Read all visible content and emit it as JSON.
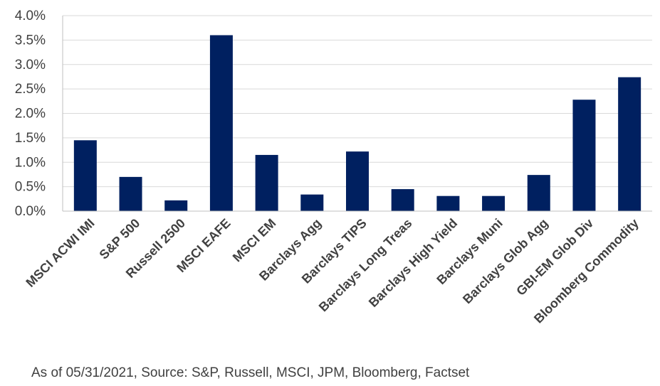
{
  "chart_data": {
    "type": "bar",
    "categories": [
      "MSCI ACWI IMI",
      "S&P 500",
      "Russell 2500",
      "MSCI EAFE",
      "MSCI EM",
      "Barclays Agg",
      "Barclays TIPS",
      "Barclays Long Treas",
      "Barclays High Yield",
      "Barclays Muni",
      "Barclays Glob Agg",
      "GBI-EM Glob Div",
      "Bloomberg Commodity"
    ],
    "values": [
      1.45,
      0.7,
      0.22,
      3.6,
      1.15,
      0.34,
      1.22,
      0.45,
      0.31,
      0.31,
      0.74,
      2.28,
      2.74
    ],
    "yticks": [
      "0.0%",
      "0.5%",
      "1.0%",
      "1.5%",
      "2.0%",
      "2.5%",
      "3.0%",
      "3.5%",
      "4.0%"
    ],
    "ylim": [
      0,
      4.0
    ],
    "grid": true,
    "legend": "none",
    "bar_color": "#002060",
    "grid_color": "#d9d9d9"
  },
  "footnote": "As of 05/31/2021, Source: S&P, Russell, MSCI, JPM, Bloomberg, Factset"
}
